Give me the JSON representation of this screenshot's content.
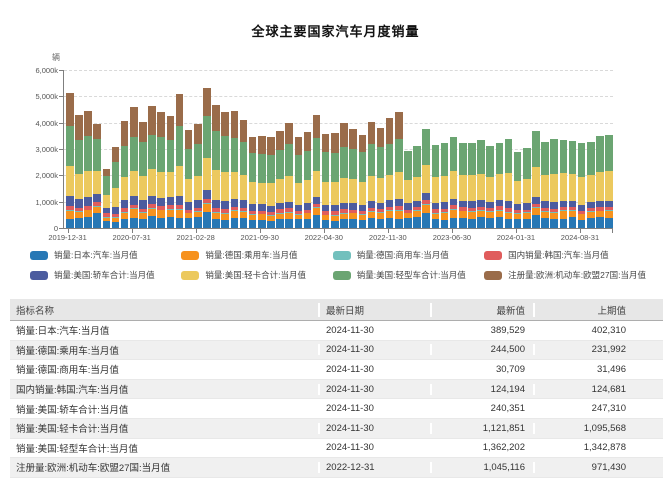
{
  "title": "全球主要国家汽车月度销量",
  "chart": {
    "unit_label": "辆",
    "y_ticks": [
      "0",
      "1,000k",
      "2,000k",
      "3,000k",
      "4,000k",
      "5,000k",
      "6,000k"
    ]
  },
  "chart_data": {
    "type": "bar",
    "stacked": true,
    "title": "全球主要国家汽车月度销量",
    "ylabel": "辆",
    "ylim": [
      0,
      6000
    ],
    "value_unit": "thousand vehicles (k)",
    "grid": "horizontal-dashed",
    "legend_position": "bottom",
    "x": [
      "2019-12-31",
      "2020-01-31",
      "2020-02-29",
      "2020-03-31",
      "2020-04-30",
      "2020-05-31",
      "2020-06-30",
      "2020-07-31",
      "2020-08-31",
      "2020-09-30",
      "2020-10-31",
      "2020-11-30",
      "2020-12-31",
      "2021-01-31",
      "2021-02-28",
      "2021-03-31",
      "2021-04-30",
      "2021-05-31",
      "2021-06-30",
      "2021-07-31",
      "2021-08-31",
      "2021-09-30",
      "2021-10-31",
      "2021-11-30",
      "2021-12-31",
      "2022-01-31",
      "2022-02-28",
      "2022-03-31",
      "2022-04-30",
      "2022-05-31",
      "2022-06-30",
      "2022-07-31",
      "2022-08-31",
      "2022-09-30",
      "2022-10-31",
      "2022-11-30",
      "2022-12-31",
      "2023-01-31",
      "2023-02-28",
      "2023-03-31",
      "2023-04-30",
      "2023-05-31",
      "2023-06-30",
      "2023-07-31",
      "2023-08-31",
      "2023-09-30",
      "2023-10-31",
      "2023-11-30",
      "2023-12-31",
      "2024-01-31",
      "2024-02-29",
      "2024-03-31",
      "2024-04-30",
      "2024-05-31",
      "2024-06-30",
      "2024-07-31",
      "2024-08-31",
      "2024-09-30",
      "2024-10-31",
      "2024-11-30"
    ],
    "x_tick_indices": [
      0,
      7,
      14,
      21,
      28,
      35,
      42,
      49,
      56
    ],
    "x_tick_labels": [
      "2019-12-31",
      "2020-07-31",
      "2021-02-28",
      "2021-09-30",
      "2022-04-30",
      "2022-11-30",
      "2023-06-30",
      "2024-01-31",
      "2024-08-31"
    ],
    "series": [
      {
        "name": "销量:日本:汽车:当月值",
        "color": "#2878b5",
        "values": [
          350,
          380,
          430,
          581,
          271,
          218,
          348,
          397,
          326,
          470,
          396,
          413,
          370,
          384,
          428,
          613,
          349,
          319,
          365,
          378,
          320,
          318,
          279,
          352,
          336,
          329,
          354,
          512,
          299,
          261,
          327,
          349,
          291,
          396,
          359,
          377,
          344,
          382,
          434,
          582,
          349,
          320,
          400,
          389,
          340,
          427,
          397,
          416,
          351,
          330,
          344,
          486,
          364,
          340,
          340,
          412,
          323,
          397,
          402,
          390
        ]
      },
      {
        "name": "销量:德国:乘用车:当月值",
        "color": "#f6921e",
        "values": [
          283,
          246,
          239,
          215,
          121,
          168,
          220,
          314,
          251,
          265,
          274,
          290,
          311,
          169,
          194,
          292,
          229,
          230,
          274,
          236,
          193,
          196,
          178,
          198,
          227,
          184,
          201,
          241,
          180,
          207,
          224,
          206,
          200,
          225,
          209,
          260,
          314,
          179,
          206,
          281,
          202,
          246,
          280,
          243,
          273,
          225,
          219,
          245,
          241,
          213,
          217,
          263,
          243,
          236,
          297,
          238,
          197,
          209,
          232,
          245
        ]
      },
      {
        "name": "销量:德国:商用车:当月值",
        "color": "#72c0bd",
        "values": [
          37,
          31,
          33,
          36,
          18,
          22,
          30,
          32,
          27,
          34,
          31,
          32,
          35,
          27,
          29,
          36,
          30,
          29,
          33,
          28,
          25,
          27,
          26,
          29,
          31,
          27,
          29,
          34,
          27,
          29,
          32,
          28,
          26,
          30,
          29,
          33,
          36,
          27,
          30,
          37,
          29,
          31,
          34,
          29,
          28,
          31,
          29,
          32,
          31,
          28,
          30,
          35,
          30,
          31,
          32,
          29,
          26,
          29,
          31,
          31
        ]
      },
      {
        "name": "国内销量:韩国:汽车:当月值",
        "color": "#e05c5c",
        "values": [
          160,
          116,
          119,
          151,
          143,
          146,
          176,
          145,
          130,
          132,
          130,
          146,
          164,
          110,
          122,
          161,
          142,
          141,
          145,
          121,
          109,
          114,
          121,
          138,
          155,
          113,
          119,
          141,
          127,
          133,
          146,
          121,
          112,
          128,
          129,
          143,
          158,
          110,
          119,
          148,
          133,
          141,
          152,
          125,
          122,
          130,
          121,
          133,
          143,
          102,
          110,
          140,
          125,
          125,
          130,
          118,
          112,
          117,
          125,
          124
        ]
      },
      {
        "name": "销量:美国:轿车合计:当月值",
        "color": "#4c5c9f",
        "values": [
          370,
          330,
          340,
          310,
          193,
          255,
          300,
          330,
          320,
          330,
          325,
          310,
          345,
          290,
          300,
          330,
          315,
          310,
          300,
          290,
          270,
          250,
          240,
          245,
          260,
          230,
          240,
          265,
          235,
          230,
          240,
          235,
          230,
          240,
          235,
          240,
          250,
          235,
          245,
          270,
          245,
          250,
          255,
          245,
          245,
          250,
          235,
          240,
          250,
          225,
          235,
          265,
          245,
          250,
          245,
          240,
          235,
          240,
          247,
          240
        ]
      },
      {
        "name": "销量:美国:轻卡合计:当月值",
        "color": "#ecc95e",
        "values": [
          1150,
          950,
          1000,
          890,
          524,
          720,
          870,
          960,
          940,
          990,
          980,
          930,
          1150,
          870,
          900,
          1250,
          1160,
          1080,
          1000,
          960,
          830,
          820,
          850,
          880,
          970,
          830,
          880,
          990,
          890,
          880,
          940,
          910,
          900,
          960,
          930,
          950,
          1010,
          880,
          920,
          1080,
          970,
          1000,
          1050,
          980,
          990,
          1010,
          940,
          970,
          1060,
          880,
          940,
          1120,
          1010,
          1070,
          1030,
          1010,
          1050,
          1010,
          1096,
          1122
        ]
      },
      {
        "name": "销量:美国:轻型车合计:当月值",
        "color": "#6ba572",
        "values": [
          1520,
          1280,
          1340,
          1200,
          717,
          975,
          1170,
          1290,
          1260,
          1320,
          1305,
          1240,
          1510,
          1160,
          1200,
          1580,
          1480,
          1390,
          1300,
          1250,
          1100,
          1070,
          1090,
          1125,
          1230,
          1060,
          1120,
          1255,
          1125,
          1110,
          1180,
          1145,
          1130,
          1200,
          1165,
          1190,
          1260,
          1115,
          1165,
          1350,
          1215,
          1250,
          1305,
          1225,
          1235,
          1260,
          1175,
          1210,
          1310,
          1105,
          1175,
          1385,
          1255,
          1320,
          1275,
          1250,
          1285,
          1250,
          1343,
          1362
        ]
      },
      {
        "name": "注册量:欧洲:机动车:欧盟27国:当月值",
        "color": "#9a6c4a",
        "values": [
          1264,
          956,
          957,
          568,
          271,
          581,
          949,
          1132,
          769,
          1096,
          953,
          897,
          1214,
          726,
          772,
          1062,
          970,
          891,
          1045,
          823,
          622,
          679,
          665,
          713,
          795,
          683,
          720,
          844,
          684,
          743,
          886,
          748,
          650,
          860,
          745,
          971,
          1045,
          null,
          null,
          null,
          null,
          null,
          null,
          null,
          null,
          null,
          null,
          null,
          null,
          null,
          null,
          null,
          null,
          null,
          null,
          null,
          null,
          null,
          null,
          null
        ]
      }
    ]
  },
  "table": {
    "headers": [
      "指标名称",
      "最新日期",
      "最新值",
      "上期值"
    ],
    "rows": [
      [
        "销量:日本:汽车:当月值",
        "2024-11-30",
        "389,529",
        "402,310"
      ],
      [
        "销量:德国:乘用车:当月值",
        "2024-11-30",
        "244,500",
        "231,992"
      ],
      [
        "销量:德国:商用车:当月值",
        "2024-11-30",
        "30,709",
        "31,496"
      ],
      [
        "国内销量:韩国:汽车:当月值",
        "2024-11-30",
        "124,194",
        "124,681"
      ],
      [
        "销量:美国:轿车合计:当月值",
        "2024-11-30",
        "240,351",
        "247,310"
      ],
      [
        "销量:美国:轻卡合计:当月值",
        "2024-11-30",
        "1,121,851",
        "1,095,568"
      ],
      [
        "销量:美国:轻型车合计:当月值",
        "2024-11-30",
        "1,362,202",
        "1,342,878"
      ],
      [
        "注册量:欧洲:机动车:欧盟27国:当月值",
        "2022-12-31",
        "1,045,116",
        "971,430"
      ]
    ]
  }
}
